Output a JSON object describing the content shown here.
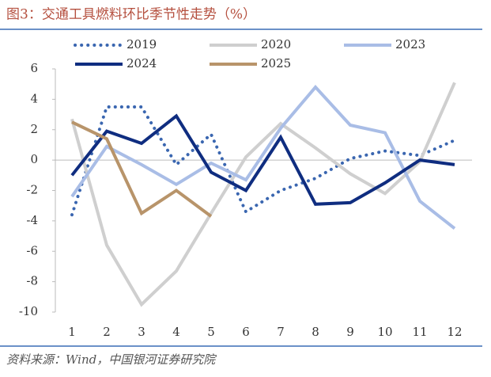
{
  "chart_data": {
    "type": "line",
    "title": "图3：交通工具燃料环比季节性走势（%）",
    "source": "资料来源：Wind，中国银河证券研究院",
    "categories": [
      "1",
      "2",
      "3",
      "4",
      "5",
      "6",
      "7",
      "8",
      "9",
      "10",
      "11",
      "12"
    ],
    "series": [
      {
        "name": "2019",
        "color": "#3a66b0",
        "style": "dotted",
        "values": [
          -3.6,
          3.5,
          3.5,
          -0.3,
          1.7,
          -3.4,
          -2.0,
          -1.2,
          0.1,
          0.6,
          0.3,
          1.3
        ]
      },
      {
        "name": "2020",
        "color": "#cfcfcf",
        "style": "solid",
        "values": [
          2.7,
          -5.6,
          -9.5,
          -7.3,
          -3.5,
          0.2,
          2.4,
          0.8,
          -0.9,
          -2.2,
          -0.1,
          5.1
        ]
      },
      {
        "name": "2023",
        "color": "#a9bde6",
        "style": "solid",
        "values": [
          -2.4,
          0.9,
          -0.3,
          -1.6,
          -0.2,
          -1.3,
          2.1,
          4.8,
          2.3,
          1.8,
          -2.7,
          -4.5
        ]
      },
      {
        "name": "2024",
        "color": "#0f2d80",
        "style": "solid",
        "values": [
          -1.0,
          1.9,
          1.1,
          2.9,
          -0.8,
          -2.0,
          1.5,
          -2.9,
          -2.8,
          -1.5,
          0.0,
          -0.3
        ]
      },
      {
        "name": "2025",
        "color": "#b8946a",
        "style": "solid",
        "values": [
          2.5,
          1.4,
          -3.5,
          -2.0,
          -3.7,
          null,
          null,
          null,
          null,
          null,
          null,
          null
        ]
      }
    ],
    "ylim": [
      -10,
      6
    ],
    "yticks": [
      6,
      4,
      2,
      0,
      -2,
      -4,
      -6,
      -8,
      -10
    ],
    "legend": "top"
  }
}
